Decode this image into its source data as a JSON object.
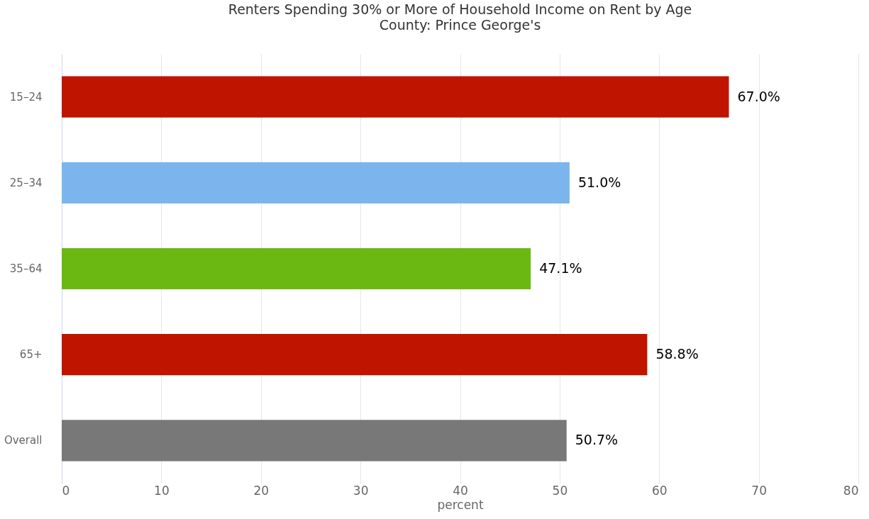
{
  "chart_data": {
    "type": "bar",
    "orientation": "horizontal",
    "title": "Renters Spending 30% or More of Household Income on Rent by Age",
    "subtitle": "County: Prince George's",
    "categories": [
      "15–24",
      "25–34",
      "35–64",
      "65+",
      "Overall"
    ],
    "values": [
      67.0,
      51.0,
      47.1,
      58.8,
      50.7
    ],
    "colors": [
      "#bf1400",
      "#7cb5ec",
      "#6cb813",
      "#bf1400",
      "#787878"
    ],
    "value_labels": [
      "67.0%",
      "51.0%",
      "47.1%",
      "58.8%",
      "50.7%"
    ],
    "xlabel": "percent",
    "xlim": [
      0,
      80
    ],
    "xticks": [
      0,
      10,
      20,
      30,
      40,
      50,
      60,
      70,
      80
    ],
    "grid": "x"
  }
}
